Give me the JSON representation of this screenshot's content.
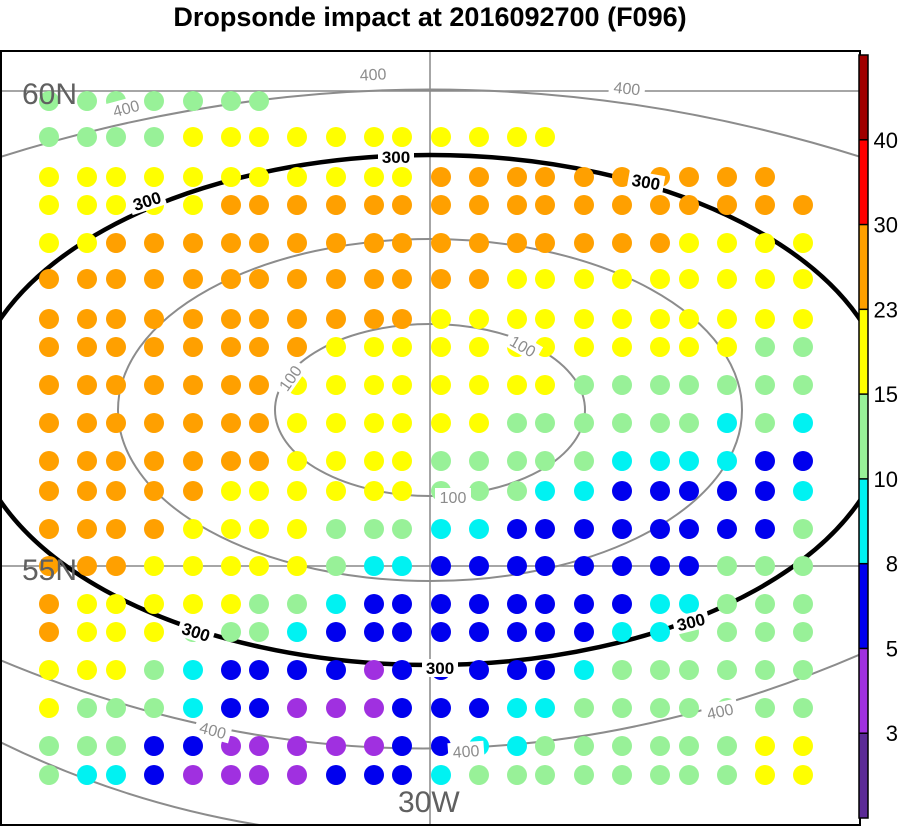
{
  "chart_data": {
    "type": "scatter",
    "title": "Dropsonde impact at 2016092700 (F096)",
    "grid": true,
    "legend_placement": "right",
    "map_labels": {
      "lat_north": "60N",
      "lat_south": "55N",
      "lon": "30W"
    },
    "contours": [
      {
        "value": 100,
        "label": "100",
        "color": "#8c8c8c",
        "bold": false
      },
      {
        "value": 300,
        "label": "300",
        "color": "#000000",
        "bold": true
      },
      {
        "value": 400,
        "label": "400",
        "color": "#8c8c8c",
        "bold": false
      }
    ],
    "colorbar": {
      "labels": [
        "3",
        "5",
        "8",
        "10",
        "15",
        "23",
        "30",
        "40"
      ],
      "colors": [
        "#5b2a96",
        "#a030e0",
        "#0000ee",
        "#00f2f2",
        "#98f198",
        "#ffff00",
        "#ffa000",
        "#ff0000",
        "#a00000"
      ]
    },
    "rows": [
      [
        "10",
        "10",
        "10",
        "10",
        "10",
        "10",
        "10",
        "",
        "",
        "",
        "",
        "",
        "",
        "",
        "",
        "",
        "",
        "",
        "",
        "",
        "",
        ""
      ],
      [
        "10",
        "10",
        "10",
        "10",
        "15",
        "15",
        "15",
        "15",
        "15",
        "15",
        "15",
        "15",
        "15",
        "15",
        "15",
        "",
        "",
        "",
        "",
        "",
        "",
        ""
      ],
      [
        "15",
        "15",
        "15",
        "15",
        "15",
        "15",
        "15",
        "15",
        "15",
        "15",
        "15",
        "23",
        "23",
        "23",
        "23",
        "23",
        "23",
        "23",
        "23",
        "23",
        "23",
        ""
      ],
      [
        "15",
        "15",
        "15",
        "15",
        "15",
        "23",
        "23",
        "23",
        "23",
        "23",
        "23",
        "23",
        "23",
        "23",
        "23",
        "23",
        "23",
        "23",
        "23",
        "23",
        "23",
        "23"
      ],
      [
        "15",
        "15",
        "23",
        "23",
        "23",
        "23",
        "23",
        "23",
        "23",
        "23",
        "23",
        "23",
        "23",
        "23",
        "23",
        "23",
        "23",
        "23",
        "15",
        "15",
        "15",
        "15"
      ],
      [
        "23",
        "23",
        "23",
        "23",
        "23",
        "23",
        "23",
        "23",
        "23",
        "23",
        "23",
        "23",
        "23",
        "15",
        "15",
        "15",
        "15",
        "15",
        "15",
        "15",
        "15",
        "15"
      ],
      [
        "23",
        "23",
        "23",
        "23",
        "23",
        "23",
        "23",
        "23",
        "23",
        "23",
        "23",
        "15",
        "15",
        "15",
        "15",
        "15",
        "15",
        "15",
        "15",
        "15",
        "15",
        "15"
      ],
      [
        "23",
        "23",
        "23",
        "23",
        "23",
        "23",
        "23",
        "23",
        "15",
        "15",
        "15",
        "15",
        "15",
        "15",
        "15",
        "15",
        "15",
        "15",
        "15",
        "15",
        "10",
        "10"
      ],
      [
        "23",
        "23",
        "23",
        "23",
        "23",
        "23",
        "23",
        "15",
        "15",
        "15",
        "15",
        "15",
        "15",
        "15",
        "15",
        "10",
        "10",
        "10",
        "10",
        "10",
        "10",
        "10"
      ],
      [
        "23",
        "23",
        "23",
        "23",
        "23",
        "23",
        "23",
        "15",
        "15",
        "15",
        "15",
        "15",
        "15",
        "10",
        "10",
        "10",
        "10",
        "10",
        "10",
        "8",
        "10",
        "8"
      ],
      [
        "23",
        "23",
        "23",
        "23",
        "23",
        "23",
        "23",
        "15",
        "15",
        "15",
        "15",
        "10",
        "10",
        "10",
        "10",
        "10",
        "8",
        "8",
        "8",
        "8",
        "5",
        "5"
      ],
      [
        "23",
        "23",
        "23",
        "23",
        "23",
        "15",
        "15",
        "15",
        "15",
        "15",
        "15",
        "10",
        "10",
        "10",
        "8",
        "8",
        "5",
        "5",
        "5",
        "5",
        "5",
        "8"
      ],
      [
        "23",
        "23",
        "23",
        "23",
        "15",
        "15",
        "15",
        "15",
        "10",
        "10",
        "10",
        "8",
        "8",
        "5",
        "5",
        "5",
        "5",
        "5",
        "5",
        "5",
        "5",
        "10"
      ],
      [
        "23",
        "23",
        "23",
        "15",
        "15",
        "15",
        "15",
        "15",
        "10",
        "8",
        "8",
        "5",
        "5",
        "5",
        "5",
        "5",
        "5",
        "5",
        "5",
        "10",
        "10",
        "10"
      ],
      [
        "23",
        "15",
        "15",
        "15",
        "15",
        "15",
        "10",
        "10",
        "8",
        "5",
        "5",
        "5",
        "5",
        "5",
        "5",
        "5",
        "5",
        "8",
        "8",
        "10",
        "10",
        "10"
      ],
      [
        "23",
        "15",
        "15",
        "15",
        "10",
        "10",
        "10",
        "8",
        "5",
        "5",
        "5",
        "5",
        "5",
        "5",
        "5",
        "5",
        "8",
        "8",
        "10",
        "10",
        "10",
        "10"
      ],
      [
        "15",
        "15",
        "15",
        "10",
        "8",
        "5",
        "5",
        "5",
        "5",
        "3",
        "5",
        "5",
        "5",
        "5",
        "5",
        "8",
        "10",
        "10",
        "10",
        "10",
        "10",
        "10"
      ],
      [
        "15",
        "10",
        "10",
        "10",
        "8",
        "5",
        "5",
        "3",
        "3",
        "3",
        "5",
        "5",
        "5",
        "8",
        "8",
        "10",
        "10",
        "10",
        "10",
        "10",
        "10",
        "10"
      ],
      [
        "10",
        "10",
        "10",
        "5",
        "5",
        "3",
        "3",
        "3",
        "3",
        "3",
        "5",
        "5",
        "8",
        "8",
        "10",
        "10",
        "10",
        "10",
        "10",
        "10",
        "15",
        "15"
      ],
      [
        "10",
        "8",
        "8",
        "5",
        "3",
        "3",
        "3",
        "3",
        "5",
        "5",
        "5",
        "8",
        "10",
        "10",
        "10",
        "10",
        "10",
        "10",
        "10",
        "10",
        "15",
        "15"
      ]
    ]
  }
}
